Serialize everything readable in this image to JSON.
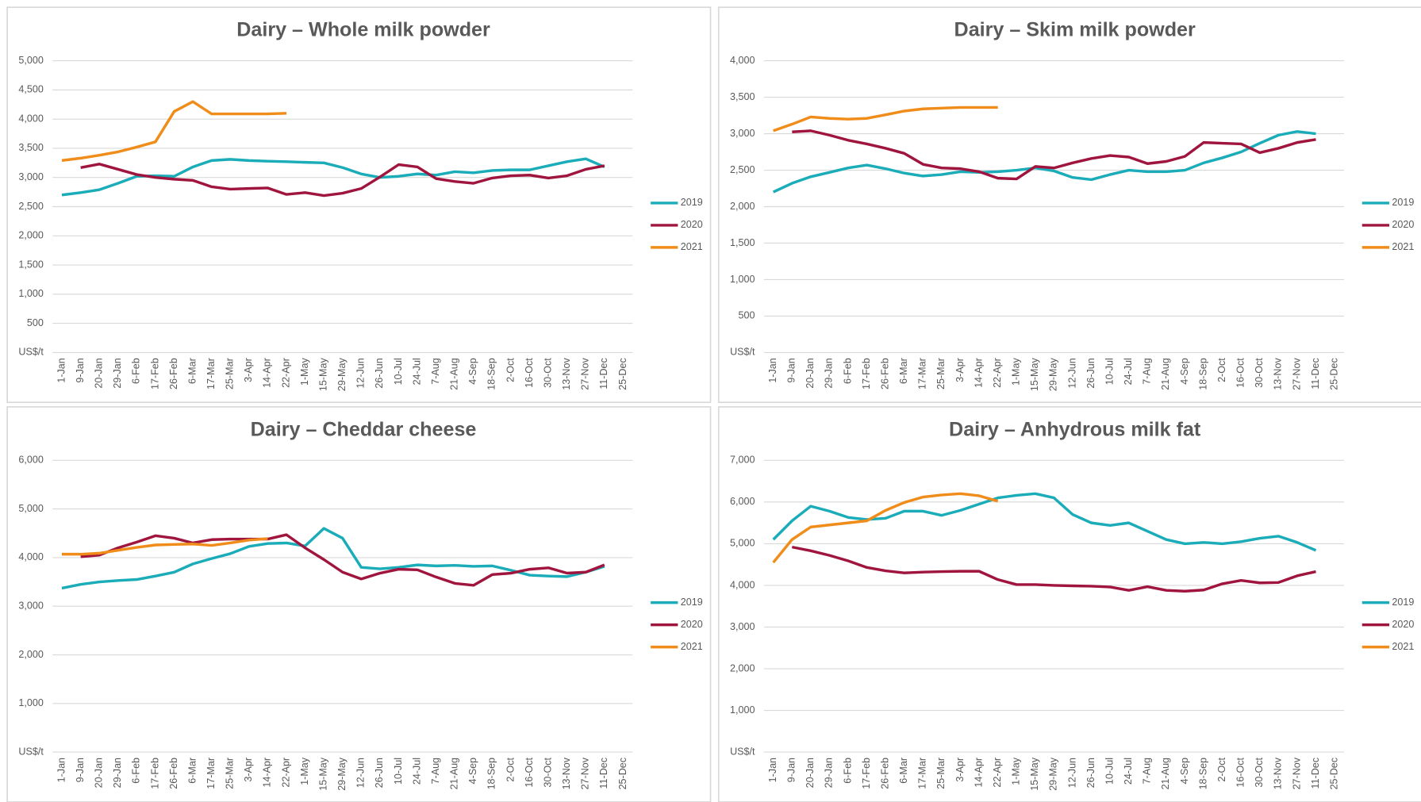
{
  "chart_data": [
    {
      "type": "line",
      "title": "Dairy – Whole milk powder",
      "categories": [
        "1-Jan",
        "9-Jan",
        "20-Jan",
        "29-Jan",
        "6-Feb",
        "17-Feb",
        "26-Feb",
        "6-Mar",
        "17-Mar",
        "25-Mar",
        "3-Apr",
        "14-Apr",
        "22-Apr",
        "1-May",
        "15-May",
        "29-May",
        "12-Jun",
        "26-Jun",
        "10-Jul",
        "24-Jul",
        "7-Aug",
        "21-Aug",
        "4-Sep",
        "18-Sep",
        "2-Oct",
        "16-Oct",
        "30-Oct",
        "13-Nov",
        "27-Nov",
        "11-Dec",
        "25-Dec"
      ],
      "series": [
        {
          "name": "2019",
          "color": "#1aacb8",
          "values": [
            2700,
            2740,
            2790,
            2900,
            3020,
            3030,
            3020,
            3180,
            3290,
            3310,
            3290,
            3280,
            3270,
            3260,
            3250,
            3170,
            3060,
            3000,
            3020,
            3060,
            3040,
            3100,
            3080,
            3120,
            3130,
            3130,
            3200,
            3270,
            3320,
            3180,
            null
          ]
        },
        {
          "name": "2020",
          "color": "#a0153e",
          "values": [
            null,
            3170,
            3230,
            3140,
            3050,
            3000,
            2970,
            2950,
            2840,
            2800,
            2810,
            2820,
            2710,
            2740,
            2690,
            2730,
            2810,
            3010,
            3220,
            3180,
            2980,
            2930,
            2900,
            2990,
            3030,
            3040,
            2990,
            3030,
            3140,
            3200,
            null
          ]
        },
        {
          "name": "2021",
          "color": "#f08c1a",
          "values": [
            3290,
            3330,
            3380,
            3440,
            3520,
            3610,
            4130,
            4300,
            4090,
            4090,
            4090,
            4090,
            4100,
            null,
            null,
            null,
            null,
            null,
            null,
            null,
            null,
            null,
            null,
            null,
            null,
            null,
            null,
            null,
            null,
            null,
            null
          ]
        }
      ],
      "ylim": [
        0,
        5000
      ],
      "yticks": [
        {
          "value": 0,
          "label": "US$/t"
        },
        500,
        {
          "value": 1000,
          "label": "1,000"
        },
        {
          "value": 1500,
          "label": "1,500"
        },
        {
          "value": 2000,
          "label": "2,000"
        },
        {
          "value": 2500,
          "label": "2,500"
        },
        {
          "value": 3000,
          "label": "3,000"
        },
        {
          "value": 3500,
          "label": "3,500"
        },
        {
          "value": 4000,
          "label": "4,000"
        },
        {
          "value": 4500,
          "label": "4,500"
        },
        {
          "value": 5000,
          "label": "5,000"
        }
      ],
      "grid": true,
      "legend": "right"
    },
    {
      "type": "line",
      "title": "Dairy – Skim milk powder",
      "categories": [
        "1-Jan",
        "9-Jan",
        "20-Jan",
        "29-Jan",
        "6-Feb",
        "17-Feb",
        "26-Feb",
        "6-Mar",
        "17-Mar",
        "25-Mar",
        "3-Apr",
        "14-Apr",
        "22-Apr",
        "1-May",
        "15-May",
        "29-May",
        "12-Jun",
        "26-Jun",
        "10-Jul",
        "24-Jul",
        "7-Aug",
        "21-Aug",
        "4-Sep",
        "18-Sep",
        "2-Oct",
        "16-Oct",
        "30-Oct",
        "13-Nov",
        "27-Nov",
        "11-Dec",
        "25-Dec"
      ],
      "series": [
        {
          "name": "2019",
          "color": "#1aacb8",
          "values": [
            2200,
            2320,
            2410,
            2470,
            2530,
            2570,
            2520,
            2460,
            2420,
            2440,
            2480,
            2470,
            2480,
            2500,
            2530,
            2490,
            2400,
            2370,
            2440,
            2500,
            2480,
            2480,
            2500,
            2600,
            2670,
            2750,
            2870,
            2980,
            3030,
            3000,
            null
          ]
        },
        {
          "name": "2020",
          "color": "#a0153e",
          "values": [
            null,
            3025,
            3040,
            2980,
            2910,
            2860,
            2800,
            2730,
            2580,
            2530,
            2520,
            2480,
            2390,
            2380,
            2550,
            2530,
            2600,
            2660,
            2700,
            2680,
            2590,
            2620,
            2690,
            2880,
            2870,
            2860,
            2740,
            2800,
            2880,
            2920,
            null
          ]
        },
        {
          "name": "2021",
          "color": "#f08c1a",
          "values": [
            3040,
            3130,
            3230,
            3210,
            3200,
            3210,
            3260,
            3310,
            3340,
            3350,
            3360,
            3360,
            3360,
            null,
            null,
            null,
            null,
            null,
            null,
            null,
            null,
            null,
            null,
            null,
            null,
            null,
            null,
            null,
            null,
            null,
            null
          ]
        }
      ],
      "ylim": [
        0,
        4000
      ],
      "yticks": [
        {
          "value": 0,
          "label": "US$/t"
        },
        500,
        {
          "value": 1000,
          "label": "1,000"
        },
        {
          "value": 1500,
          "label": "1,500"
        },
        {
          "value": 2000,
          "label": "2,000"
        },
        {
          "value": 2500,
          "label": "2,500"
        },
        {
          "value": 3000,
          "label": "3,000"
        },
        {
          "value": 3500,
          "label": "3,500"
        },
        {
          "value": 4000,
          "label": "4,000"
        }
      ],
      "grid": true,
      "legend": "right"
    },
    {
      "type": "line",
      "title": "Dairy – Cheddar cheese",
      "categories": [
        "1-Jan",
        "9-Jan",
        "20-Jan",
        "29-Jan",
        "6-Feb",
        "17-Feb",
        "26-Feb",
        "6-Mar",
        "17-Mar",
        "25-Mar",
        "3-Apr",
        "14-Apr",
        "22-Apr",
        "1-May",
        "15-May",
        "29-May",
        "12-Jun",
        "26-Jun",
        "10-Jul",
        "24-Jul",
        "7-Aug",
        "21-Aug",
        "4-Sep",
        "18-Sep",
        "2-Oct",
        "16-Oct",
        "30-Oct",
        "13-Nov",
        "27-Nov",
        "11-Dec",
        "25-Dec"
      ],
      "series": [
        {
          "name": "2019",
          "color": "#1aacb8",
          "values": [
            3370,
            3450,
            3500,
            3530,
            3550,
            3620,
            3700,
            3870,
            3980,
            4080,
            4230,
            4290,
            4300,
            4240,
            4600,
            4400,
            3800,
            3770,
            3800,
            3850,
            3830,
            3840,
            3820,
            3830,
            3740,
            3640,
            3620,
            3610,
            3700,
            3820,
            null
          ]
        },
        {
          "name": "2020",
          "color": "#a0153e",
          "values": [
            null,
            4020,
            4050,
            4200,
            4320,
            4450,
            4400,
            4300,
            4370,
            4380,
            4380,
            4380,
            4470,
            4200,
            3960,
            3700,
            3560,
            3680,
            3760,
            3750,
            3600,
            3470,
            3430,
            3650,
            3680,
            3760,
            3790,
            3680,
            3700,
            3850,
            null
          ]
        },
        {
          "name": "2021",
          "color": "#f08c1a",
          "values": [
            4070,
            4070,
            4090,
            4150,
            4210,
            4260,
            4270,
            4280,
            4250,
            4300,
            4360,
            4390,
            null,
            null,
            null,
            null,
            null,
            null,
            null,
            null,
            null,
            null,
            null,
            null,
            null,
            null,
            null,
            null,
            null,
            null,
            null
          ]
        }
      ],
      "ylim": [
        0,
        6000
      ],
      "yticks": [
        {
          "value": 0,
          "label": "US$/t"
        },
        {
          "value": 1000,
          "label": "1,000"
        },
        {
          "value": 2000,
          "label": "2,000"
        },
        {
          "value": 3000,
          "label": "3,000"
        },
        {
          "value": 4000,
          "label": "4,000"
        },
        {
          "value": 5000,
          "label": "5,000"
        },
        {
          "value": 6000,
          "label": "6,000"
        }
      ],
      "grid": true,
      "legend": "right"
    },
    {
      "type": "line",
      "title": "Dairy – Anhydrous milk fat",
      "categories": [
        "1-Jan",
        "9-Jan",
        "20-Jan",
        "29-Jan",
        "6-Feb",
        "17-Feb",
        "26-Feb",
        "6-Mar",
        "17-Mar",
        "25-Mar",
        "3-Apr",
        "14-Apr",
        "22-Apr",
        "1-May",
        "15-May",
        "29-May",
        "12-Jun",
        "26-Jun",
        "10-Jul",
        "24-Jul",
        "7-Aug",
        "21-Aug",
        "4-Sep",
        "18-Sep",
        "2-Oct",
        "16-Oct",
        "30-Oct",
        "13-Nov",
        "27-Nov",
        "11-Dec",
        "25-Dec"
      ],
      "series": [
        {
          "name": "2019",
          "color": "#1aacb8",
          "values": [
            5100,
            5550,
            5900,
            5780,
            5630,
            5580,
            5610,
            5780,
            5780,
            5680,
            5800,
            5950,
            6100,
            6160,
            6200,
            6100,
            5700,
            5500,
            5440,
            5500,
            5300,
            5100,
            5000,
            5030,
            5000,
            5050,
            5130,
            5180,
            5030,
            4840,
            null
          ]
        },
        {
          "name": "2020",
          "color": "#a0153e",
          "values": [
            null,
            4920,
            4830,
            4720,
            4590,
            4430,
            4350,
            4300,
            4320,
            4330,
            4340,
            4340,
            4140,
            4020,
            4020,
            4000,
            3990,
            3980,
            3960,
            3880,
            3970,
            3880,
            3860,
            3890,
            4040,
            4120,
            4060,
            4070,
            4230,
            4330,
            null
          ]
        },
        {
          "name": "2021",
          "color": "#f08c1a",
          "values": [
            4550,
            5100,
            5400,
            5450,
            5500,
            5550,
            5800,
            5990,
            6120,
            6170,
            6200,
            6150,
            6020,
            null,
            null,
            null,
            null,
            null,
            null,
            null,
            null,
            null,
            null,
            null,
            null,
            null,
            null,
            null,
            null,
            null,
            null
          ]
        }
      ],
      "ylim": [
        0,
        7000
      ],
      "yticks": [
        {
          "value": 0,
          "label": "US$/t"
        },
        {
          "value": 1000,
          "label": "1,000"
        },
        {
          "value": 2000,
          "label": "2,000"
        },
        {
          "value": 3000,
          "label": "3,000"
        },
        {
          "value": 4000,
          "label": "4,000"
        },
        {
          "value": 5000,
          "label": "5,000"
        },
        {
          "value": 6000,
          "label": "6,000"
        },
        {
          "value": 7000,
          "label": "7,000"
        }
      ],
      "grid": true,
      "legend": "right"
    }
  ]
}
